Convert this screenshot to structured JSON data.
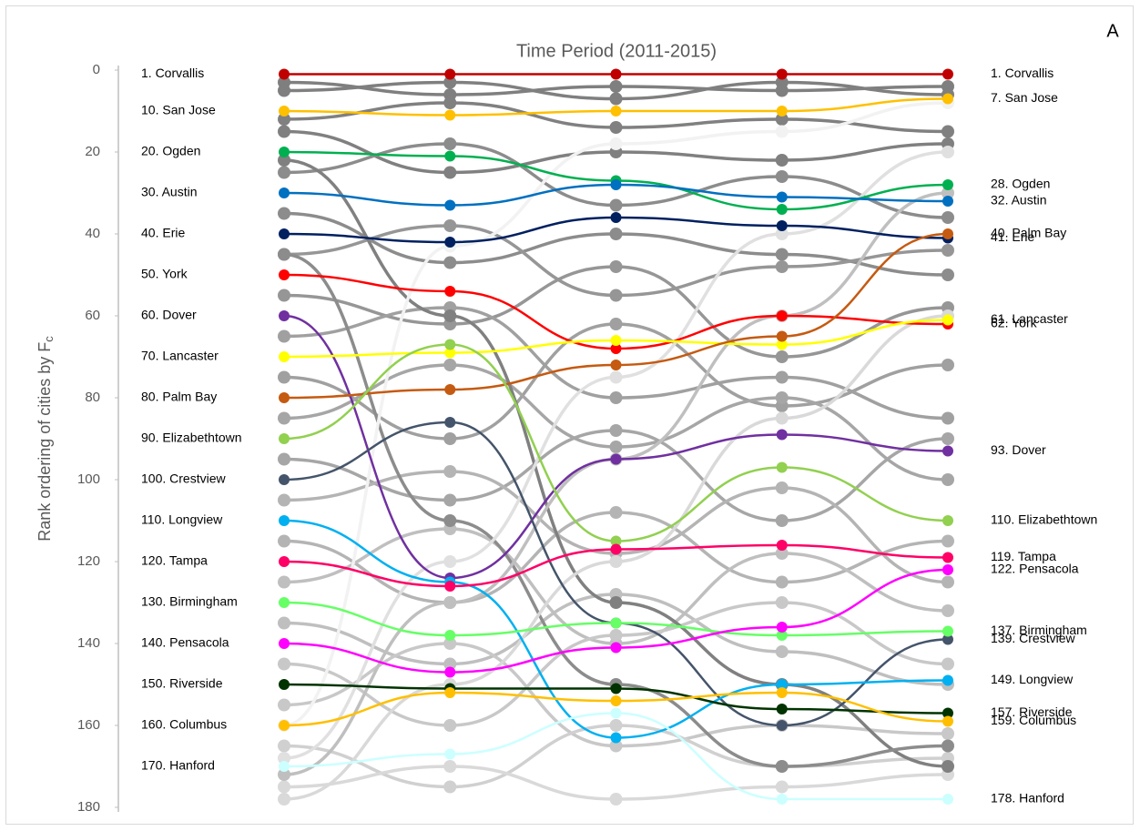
{
  "chart_data": {
    "type": "line",
    "title": "Time Period (2011-2015)",
    "panel_label": "A",
    "y_label": "Rank ordering of cities by F",
    "y_label_sub": "c",
    "ylim": [
      0,
      180
    ],
    "yticks": [
      0,
      20,
      40,
      60,
      80,
      100,
      120,
      140,
      160,
      180
    ],
    "y_inverted": true,
    "x": [
      2011,
      2012,
      2013,
      2014,
      2015
    ],
    "background_series": [
      {
        "color": "#7f7f7f",
        "values": [
          3,
          6,
          4,
          5,
          4
        ]
      },
      {
        "color": "#7f7f7f",
        "values": [
          5,
          3,
          7,
          3,
          6
        ]
      },
      {
        "color": "#808080",
        "values": [
          12,
          8,
          14,
          12,
          15
        ]
      },
      {
        "color": "#808080",
        "values": [
          15,
          25,
          20,
          22,
          18
        ]
      },
      {
        "color": "#8c8c8c",
        "values": [
          25,
          18,
          33,
          26,
          36
        ]
      },
      {
        "color": "#8c8c8c",
        "values": [
          35,
          47,
          40,
          45,
          50
        ]
      },
      {
        "color": "#969696",
        "values": [
          45,
          38,
          55,
          48,
          44
        ]
      },
      {
        "color": "#969696",
        "values": [
          55,
          62,
          48,
          70,
          58
        ]
      },
      {
        "color": "#a0a0a0",
        "values": [
          65,
          58,
          80,
          75,
          85
        ]
      },
      {
        "color": "#a0a0a0",
        "values": [
          75,
          90,
          62,
          82,
          72
        ]
      },
      {
        "color": "#a6a6a6",
        "values": [
          85,
          72,
          92,
          80,
          100
        ]
      },
      {
        "color": "#a6a6a6",
        "values": [
          95,
          105,
          88,
          110,
          90
        ]
      },
      {
        "color": "#b4b4b4",
        "values": [
          105,
          98,
          118,
          102,
          125
        ]
      },
      {
        "color": "#b4b4b4",
        "values": [
          115,
          130,
          108,
          125,
          115
        ]
      },
      {
        "color": "#bfbfbf",
        "values": [
          125,
          112,
          140,
          118,
          132
        ]
      },
      {
        "color": "#bfbfbf",
        "values": [
          135,
          145,
          128,
          142,
          150
        ]
      },
      {
        "color": "#c8c8c8",
        "values": [
          145,
          160,
          138,
          130,
          145
        ]
      },
      {
        "color": "#c8c8c8",
        "values": [
          155,
          140,
          165,
          160,
          162
        ]
      },
      {
        "color": "#d0d0d0",
        "values": [
          165,
          175,
          160,
          170,
          168
        ]
      },
      {
        "color": "#d9d9d9",
        "values": [
          175,
          170,
          178,
          175,
          172
        ]
      },
      {
        "color": "#808080",
        "values": [
          22,
          60,
          130,
          150,
          170
        ]
      },
      {
        "color": "#8c8c8c",
        "values": [
          45,
          110,
          150,
          170,
          165
        ]
      },
      {
        "color": "#bfbfbf",
        "values": [
          172,
          130,
          95,
          60,
          30
        ]
      },
      {
        "color": "#d9d9d9",
        "values": [
          178,
          150,
          120,
          85,
          60
        ]
      },
      {
        "color": "#f2f2f2",
        "values": [
          160,
          43,
          18,
          15,
          8
        ]
      },
      {
        "color": "#e0e0e0",
        "values": [
          168,
          120,
          75,
          40,
          20
        ]
      }
    ],
    "series": [
      {
        "color": "#c00000",
        "values": [
          1,
          1,
          1,
          1,
          1
        ],
        "label_start": "1. Corvallis",
        "label_end": "1. Corvallis"
      },
      {
        "color": "#ffc000",
        "values": [
          10,
          11,
          10,
          10,
          7
        ],
        "label_start": "10. San Jose",
        "label_end": "7. San Jose"
      },
      {
        "color": "#00b050",
        "values": [
          20,
          21,
          27,
          34,
          28
        ],
        "label_start": "20. Ogden",
        "label_end": "28. Ogden"
      },
      {
        "color": "#0070c0",
        "values": [
          30,
          33,
          28,
          31,
          32
        ],
        "label_start": "30. Austin",
        "label_end": "32. Austin"
      },
      {
        "color": "#002060",
        "values": [
          40,
          42,
          36,
          38,
          41
        ],
        "label_start": "40. Erie",
        "label_end": "41. Erie"
      },
      {
        "color": "#ff0000",
        "values": [
          50,
          54,
          68,
          60,
          62
        ],
        "label_start": "50. York",
        "label_end": "62. York"
      },
      {
        "color": "#7030a0",
        "values": [
          60,
          124,
          95,
          89,
          93
        ],
        "label_start": "60. Dover",
        "label_end": "93. Dover"
      },
      {
        "color": "#ffff00",
        "values": [
          70,
          69,
          66,
          67,
          61
        ],
        "label_start": "70. Lancaster",
        "label_end": "61. Lancaster"
      },
      {
        "color": "#c55a11",
        "values": [
          80,
          78,
          72,
          65,
          40
        ],
        "label_start": "80. Palm Bay",
        "label_end": "40. Palm Bay"
      },
      {
        "color": "#92d050",
        "values": [
          90,
          67,
          115,
          97,
          110
        ],
        "label_start": "90. Elizabethtown",
        "label_end": "110. Elizabethtown"
      },
      {
        "color": "#44546a",
        "values": [
          100,
          86,
          135,
          160,
          139
        ],
        "label_start": "100. Crestview",
        "label_end": "139. Crestview"
      },
      {
        "color": "#00b0f0",
        "values": [
          110,
          125,
          163,
          150,
          149
        ],
        "label_start": "110. Longview",
        "label_end": "149. Longview"
      },
      {
        "color": "#ff0066",
        "values": [
          120,
          126,
          117,
          116,
          119
        ],
        "label_start": "120. Tampa",
        "label_end": "119. Tampa"
      },
      {
        "color": "#66ff66",
        "values": [
          130,
          138,
          135,
          138,
          137
        ],
        "label_start": "130. Birmingham",
        "label_end": "137. Birmingham"
      },
      {
        "color": "#ff00ff",
        "values": [
          140,
          147,
          141,
          136,
          122
        ],
        "label_start": "140. Pensacola",
        "label_end": "122. Pensacola"
      },
      {
        "color": "#003300",
        "values": [
          150,
          151,
          151,
          156,
          157
        ],
        "label_start": "150. Riverside",
        "label_end": "157. Riverside"
      },
      {
        "color": "#ffbf00",
        "values": [
          160,
          152,
          154,
          152,
          159
        ],
        "label_start": "160. Columbus",
        "label_end": "159. Columbus"
      },
      {
        "color": "#ccffff",
        "values": [
          170,
          167,
          157,
          178,
          178
        ],
        "label_start": "170. Hanford",
        "label_end": "178. Hanford"
      }
    ]
  }
}
